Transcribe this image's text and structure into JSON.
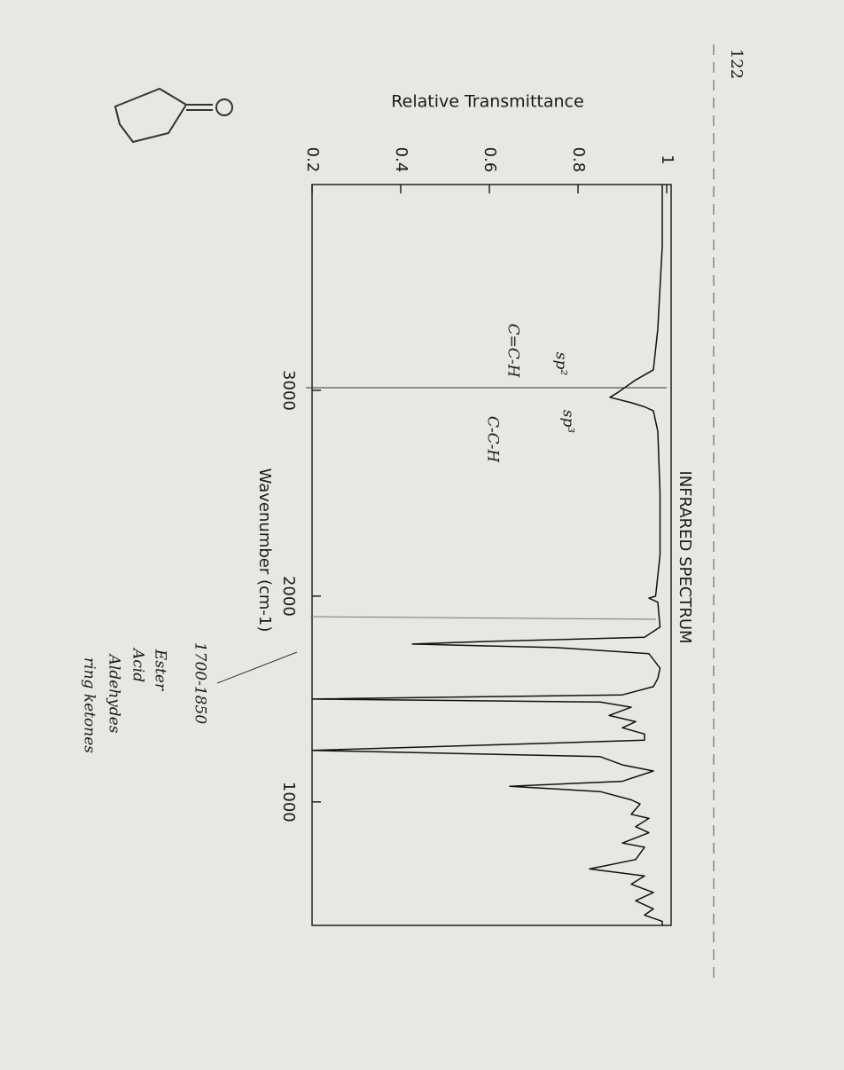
{
  "page_number": "122",
  "chart_data": {
    "type": "line",
    "title": "INFRARED SPECTRUM",
    "xlabel": "Wavenumber (cm-1)",
    "ylabel": "Relative Transmittance",
    "x": [
      4000,
      3700,
      3500,
      3300,
      3100,
      3050,
      3020,
      2990,
      2966,
      2940,
      2920,
      2900,
      2800,
      2500,
      2200,
      2000,
      1990,
      1970,
      1850,
      1800,
      1780,
      1767,
      1750,
      1720,
      1650,
      1600,
      1560,
      1520,
      1500,
      1485,
      1460,
      1420,
      1390,
      1360,
      1330,
      1300,
      1250,
      1220,
      1180,
      1150,
      1100,
      1076,
      1050,
      1010,
      990,
      940,
      920,
      880,
      850,
      800,
      780,
      720,
      674,
      640,
      600,
      560,
      520,
      480,
      450,
      420,
      400
    ],
    "values": [
      0.99,
      0.99,
      0.985,
      0.98,
      0.97,
      0.93,
      0.91,
      0.89,
      0.872,
      0.92,
      0.95,
      0.97,
      0.98,
      0.985,
      0.985,
      0.975,
      0.96,
      0.98,
      0.985,
      0.95,
      0.6,
      0.426,
      0.75,
      0.96,
      0.985,
      0.98,
      0.97,
      0.9,
      0.2,
      0.85,
      0.92,
      0.87,
      0.93,
      0.9,
      0.95,
      0.95,
      0.2,
      0.85,
      0.9,
      0.97,
      0.9,
      0.646,
      0.85,
      0.92,
      0.94,
      0.92,
      0.96,
      0.93,
      0.96,
      0.9,
      0.95,
      0.93,
      0.826,
      0.95,
      0.92,
      0.97,
      0.93,
      0.97,
      0.95,
      0.99,
      0.99
    ],
    "color": "#111111",
    "xlim": [
      4000,
      400
    ],
    "xticks": [
      3000,
      2000,
      1000
    ],
    "ylim": [
      0.2,
      1
    ],
    "yticks": [
      0.2,
      0.4,
      0.6,
      0.8,
      1
    ],
    "annotations": [
      "sp²",
      "sp³",
      "C=C-H",
      "C-C-H",
      "1700-1850",
      "Ester",
      "Acid",
      "Aldehydes",
      "ring ketones"
    ]
  }
}
